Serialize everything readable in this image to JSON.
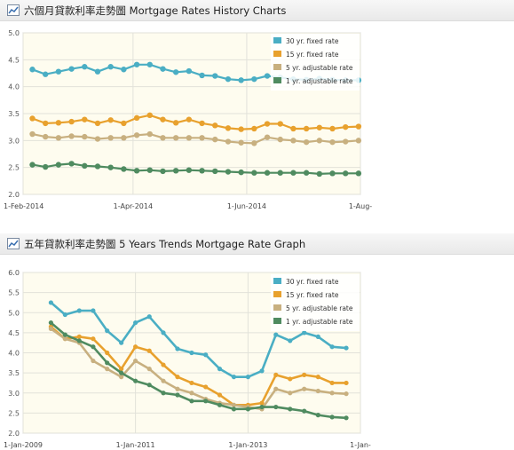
{
  "charts": [
    {
      "header_title": "六個月貸款利率走勢圖  Mortgage Rates History Charts",
      "chart_data": {
        "type": "line",
        "title": "六個月貸款利率走勢圖  Mortgage Rates History Charts",
        "xlabel": "",
        "ylabel": "",
        "ylim": [
          2.0,
          5.0
        ],
        "yticks": [
          "2.0",
          "2.5",
          "3.0",
          "3.5",
          "4.0",
          "4.5",
          "5.0"
        ],
        "xlim": [
          "2014-02-01",
          "2014-08-01"
        ],
        "xticks": [
          {
            "date": "2014-02-01",
            "label": "1-Feb-2014"
          },
          {
            "date": "2014-04-01",
            "label": "1-Apr-2014"
          },
          {
            "date": "2014-06-01",
            "label": "1-Jun-2014"
          },
          {
            "date": "2014-08-01",
            "label": "1-Aug-"
          }
        ],
        "grid": true,
        "legend_position": "top-right",
        "x": [
          "2014-02-06",
          "2014-02-13",
          "2014-02-20",
          "2014-02-27",
          "2014-03-06",
          "2014-03-13",
          "2014-03-20",
          "2014-03-27",
          "2014-04-03",
          "2014-04-10",
          "2014-04-17",
          "2014-04-24",
          "2014-05-01",
          "2014-05-08",
          "2014-05-15",
          "2014-05-22",
          "2014-05-29",
          "2014-06-05",
          "2014-06-12",
          "2014-06-19",
          "2014-06-26",
          "2014-07-03",
          "2014-07-10",
          "2014-07-17",
          "2014-07-24",
          "2014-07-31"
        ],
        "series": [
          {
            "name": "30 yr. fixed rate",
            "color": "#4aaec4",
            "values": [
              4.32,
              4.23,
              4.28,
              4.33,
              4.37,
              4.28,
              4.37,
              4.32,
              4.41,
              4.41,
              4.33,
              4.27,
              4.29,
              4.21,
              4.2,
              4.14,
              4.12,
              4.14,
              4.2,
              4.17,
              4.14,
              4.13,
              4.15,
              4.13,
              4.12,
              4.12
            ]
          },
          {
            "name": "15 yr. fixed rate",
            "color": "#e8a12e",
            "values": [
              3.41,
              3.32,
              3.33,
              3.35,
              3.39,
              3.32,
              3.38,
              3.32,
              3.42,
              3.47,
              3.39,
              3.33,
              3.39,
              3.32,
              3.28,
              3.23,
              3.21,
              3.22,
              3.31,
              3.31,
              3.22,
              3.22,
              3.24,
              3.22,
              3.25,
              3.26
            ]
          },
          {
            "name": "5 yr. adjustable rate",
            "color": "#c8b080",
            "values": [
              3.12,
              3.07,
              3.05,
              3.08,
              3.07,
              3.03,
              3.05,
              3.05,
              3.1,
              3.12,
              3.05,
              3.05,
              3.05,
              3.05,
              3.02,
              2.98,
              2.96,
              2.95,
              3.06,
              3.02,
              3.0,
              2.97,
              3.0,
              2.97,
              2.98,
              3.0
            ]
          },
          {
            "name": "1 yr. adjustable rate",
            "color": "#4f8b60",
            "values": [
              2.55,
              2.51,
              2.55,
              2.57,
              2.53,
              2.52,
              2.5,
              2.47,
              2.44,
              2.45,
              2.43,
              2.44,
              2.45,
              2.44,
              2.43,
              2.42,
              2.41,
              2.4,
              2.4,
              2.4,
              2.4,
              2.4,
              2.38,
              2.39,
              2.39,
              2.39
            ]
          }
        ]
      }
    },
    {
      "header_title": "五年貸款利率走勢圖  5 Years Trends Mortgage Rate Graph",
      "chart_data": {
        "type": "line",
        "title": "五年貸款利率走勢圖  5 Years Trends Mortgage Rate Graph",
        "xlabel": "",
        "ylabel": "",
        "ylim": [
          2.0,
          6.0
        ],
        "yticks": [
          "2.0",
          "2.5",
          "3.0",
          "3.5",
          "4.0",
          "4.5",
          "5.0",
          "5.5",
          "6.0"
        ],
        "xlim": [
          "2009-01-01",
          "2015-01-01"
        ],
        "xticks": [
          {
            "date": "2009-01-01",
            "label": "1-Jan-2009"
          },
          {
            "date": "2011-01-01",
            "label": "1-Jan-2011"
          },
          {
            "date": "2013-01-01",
            "label": "1-Jan-2013"
          },
          {
            "date": "2015-01-01",
            "label": "1-Jan-"
          }
        ],
        "grid": true,
        "legend_position": "top-right",
        "x": [
          "2009-07-01",
          "2009-10-01",
          "2010-01-01",
          "2010-04-01",
          "2010-07-01",
          "2010-10-01",
          "2011-01-01",
          "2011-04-01",
          "2011-07-01",
          "2011-10-01",
          "2012-01-01",
          "2012-04-01",
          "2012-07-01",
          "2012-10-01",
          "2013-01-01",
          "2013-04-01",
          "2013-07-01",
          "2013-10-01",
          "2014-01-01",
          "2014-04-01",
          "2014-07-01",
          "2014-10-01"
        ],
        "series": [
          {
            "name": "30 yr. fixed rate",
            "color": "#4aaec4",
            "values": [
              5.25,
              4.95,
              5.05,
              5.05,
              4.55,
              4.25,
              4.75,
              4.9,
              4.5,
              4.1,
              4.0,
              3.95,
              3.6,
              3.4,
              3.4,
              3.55,
              4.45,
              4.3,
              4.5,
              4.4,
              4.15,
              4.12
            ]
          },
          {
            "name": "15 yr. fixed rate",
            "color": "#e8a12e",
            "values": [
              4.65,
              4.35,
              4.4,
              4.35,
              4.0,
              3.6,
              4.15,
              4.05,
              3.7,
              3.4,
              3.25,
              3.15,
              2.95,
              2.7,
              2.7,
              2.75,
              3.45,
              3.35,
              3.45,
              3.4,
              3.25,
              3.25
            ]
          },
          {
            "name": "5 yr. adjustable rate",
            "color": "#c8b080",
            "values": [
              4.6,
              4.35,
              4.25,
              3.8,
              3.6,
              3.4,
              3.8,
              3.6,
              3.3,
              3.1,
              3.0,
              2.85,
              2.75,
              2.7,
              2.65,
              2.6,
              3.1,
              3.0,
              3.1,
              3.05,
              3.0,
              2.98
            ]
          },
          {
            "name": "1 yr. adjustable rate",
            "color": "#4f8b60",
            "values": [
              4.75,
              4.45,
              4.3,
              4.15,
              3.75,
              3.5,
              3.3,
              3.2,
              3.0,
              2.95,
              2.8,
              2.8,
              2.7,
              2.6,
              2.6,
              2.65,
              2.65,
              2.6,
              2.55,
              2.45,
              2.4,
              2.38
            ]
          }
        ]
      }
    }
  ]
}
